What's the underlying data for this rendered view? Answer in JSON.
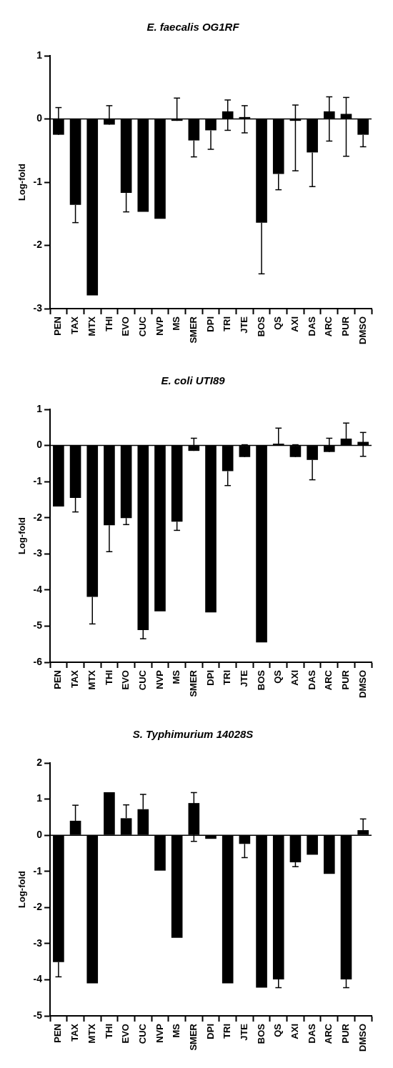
{
  "chart_data": [
    {
      "type": "bar",
      "title": "E. faecalis OG1RF",
      "ylabel": "Log-fold",
      "categories": [
        "PEN",
        "TAX",
        "MTX",
        "THI",
        "EVO",
        "CUC",
        "NVP",
        "MS",
        "SMER",
        "DPI",
        "TRI",
        "JTE",
        "BOS",
        "QS",
        "AXI",
        "DAS",
        "ARC",
        "PUR",
        "DMSO"
      ],
      "values": [
        -0.25,
        -1.36,
        -2.79,
        -0.09,
        -1.17,
        -1.47,
        -1.58,
        -0.03,
        -0.34,
        -0.18,
        0.12,
        0.03,
        -1.64,
        -0.87,
        -0.03,
        -0.53,
        0.12,
        0.08,
        -0.25
      ],
      "errors": [
        [
          -0.25,
          0.18
        ],
        [
          -1.64,
          -1.36
        ],
        null,
        [
          -0.09,
          0.21
        ],
        [
          -1.47,
          -1.17
        ],
        null,
        null,
        [
          -0.03,
          0.33
        ],
        [
          -0.6,
          -0.34
        ],
        [
          -0.48,
          -0.18
        ],
        [
          -0.18,
          0.3
        ],
        [
          -0.22,
          0.21
        ],
        [
          -2.45,
          -1.64
        ],
        [
          -1.12,
          -0.87
        ],
        [
          -0.82,
          0.22
        ],
        [
          -1.07,
          -0.53
        ],
        [
          -0.35,
          0.35
        ],
        [
          -0.59,
          0.34
        ],
        [
          -0.44,
          -0.25
        ]
      ],
      "color": "#000000",
      "ylim": [
        -3,
        1
      ],
      "yticks": [
        -3,
        -2,
        -1,
        0,
        1
      ],
      "grid": false,
      "ref_lines": [
        {
          "axis": "y",
          "value": 0
        }
      ]
    },
    {
      "type": "bar",
      "title": "E. coli UTI89",
      "ylabel": "Log-fold",
      "categories": [
        "PEN",
        "TAX",
        "MTX",
        "THI",
        "EVO",
        "CUC",
        "NVP",
        "MS",
        "SMER",
        "DPI",
        "TRI",
        "JTE",
        "BOS",
        "QS",
        "AXI",
        "DAS",
        "ARC",
        "PUR",
        "DMSO"
      ],
      "values": [
        -1.69,
        -1.45,
        -4.19,
        -2.21,
        -2.01,
        -5.11,
        -4.59,
        -2.11,
        -0.15,
        -4.62,
        -0.71,
        -0.32,
        -5.45,
        0.05,
        -0.32,
        -0.4,
        -0.18,
        0.19,
        0.1
      ],
      "errors": [
        null,
        [
          -1.84,
          -1.45
        ],
        [
          -4.94,
          -4.19
        ],
        [
          -2.94,
          -2.21
        ],
        [
          -2.19,
          -2.01
        ],
        [
          -5.35,
          -5.11
        ],
        null,
        [
          -2.35,
          -2.11
        ],
        [
          -0.15,
          0.2
        ],
        null,
        [
          -1.11,
          -0.71
        ],
        [
          -0.32,
          0.02
        ],
        null,
        [
          0.05,
          0.48
        ],
        [
          -0.32,
          0.02
        ],
        [
          -0.95,
          -0.4
        ],
        [
          -0.18,
          0.2
        ],
        [
          0.19,
          0.62
        ],
        [
          -0.3,
          0.36
        ]
      ],
      "color": "#000000",
      "ylim": [
        -6,
        1
      ],
      "yticks": [
        -6,
        -5,
        -4,
        -3,
        -2,
        -1,
        0,
        1
      ],
      "grid": false,
      "ref_lines": [
        {
          "axis": "y",
          "value": 0
        }
      ]
    },
    {
      "type": "bar",
      "title": "S. Typhimurium 14028S",
      "ylabel": "Log-fold",
      "categories": [
        "PEN",
        "TAX",
        "MTX",
        "THI",
        "EVO",
        "CUC",
        "NVP",
        "MS",
        "SMER",
        "DPI",
        "TRI",
        "JTE",
        "BOS",
        "QS",
        "AXI",
        "DAS",
        "ARC",
        "PUR",
        "DMSO"
      ],
      "values": [
        -3.51,
        0.4,
        -4.1,
        1.19,
        0.47,
        0.72,
        -0.98,
        -2.84,
        0.89,
        -0.1,
        -4.1,
        -0.24,
        -4.22,
        -3.99,
        -0.75,
        -0.54,
        -1.07,
        -3.99,
        0.14
      ],
      "errors": [
        [
          -3.92,
          -3.51
        ],
        [
          0.4,
          0.83
        ],
        null,
        null,
        [
          0.47,
          0.84
        ],
        [
          0.72,
          1.13
        ],
        null,
        null,
        [
          -0.17,
          1.18
        ],
        null,
        null,
        [
          -0.62,
          -0.24
        ],
        null,
        [
          -4.22,
          -3.99
        ],
        [
          -0.87,
          -0.75
        ],
        null,
        null,
        [
          -4.22,
          -3.99
        ],
        [
          0.14,
          0.45
        ]
      ],
      "color": "#000000",
      "ylim": [
        -5,
        2
      ],
      "yticks": [
        -5,
        -4,
        -3,
        -2,
        -1,
        0,
        1,
        2
      ],
      "grid": false,
      "ref_lines": [
        {
          "axis": "y",
          "value": 0
        }
      ]
    }
  ]
}
